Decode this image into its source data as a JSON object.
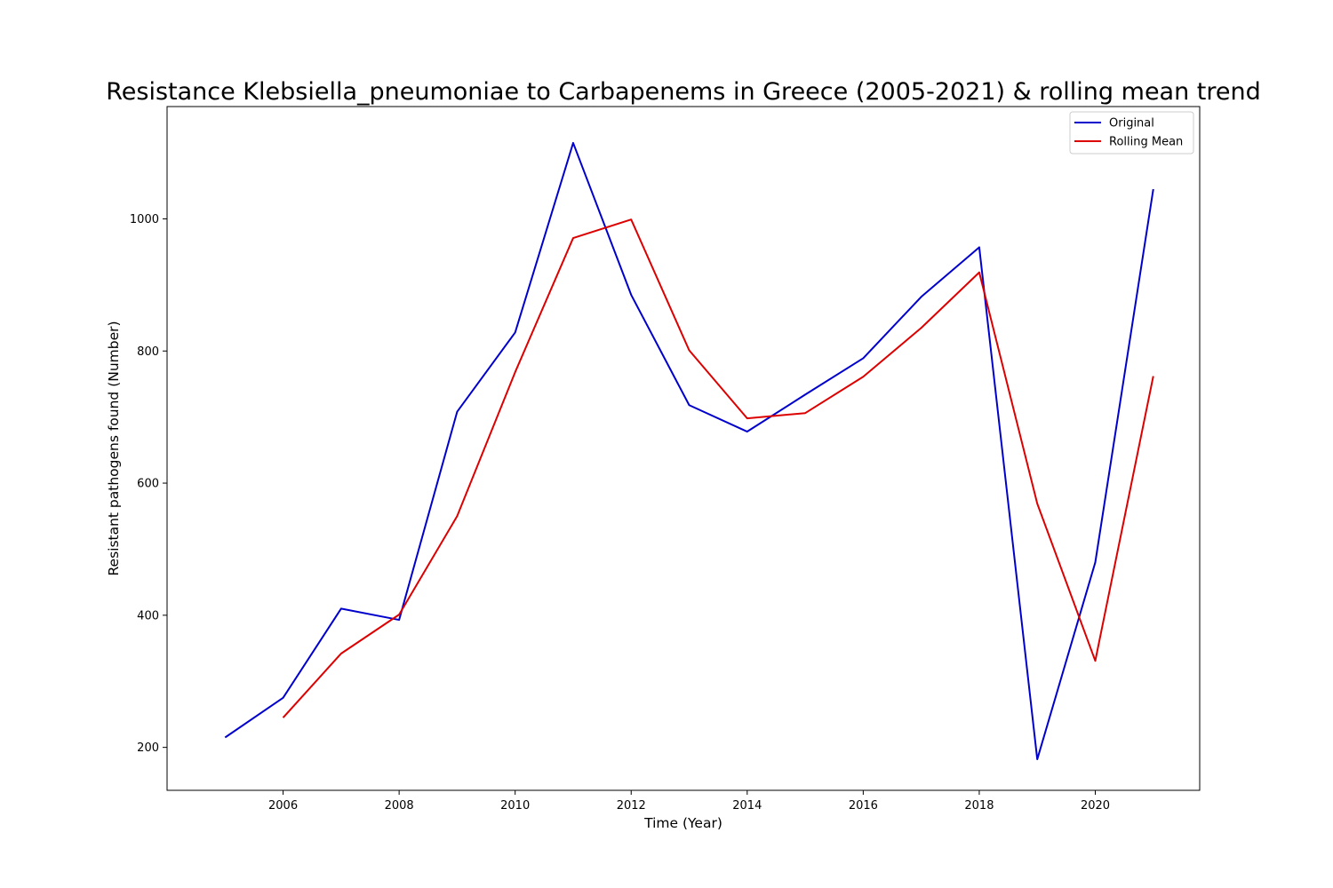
{
  "chart_data": {
    "type": "line",
    "title": "Resistance Klebsiella_pneumoniae to Carbapenems in Greece (2005-2021) & rolling mean trend",
    "xlabel": "Time (Year)",
    "ylabel": "Resistant pathogens found (Number)",
    "xlim": [
      2004,
      2021.8
    ],
    "ylim": [
      135,
      1170
    ],
    "xticks": [
      2006,
      2008,
      2010,
      2012,
      2014,
      2016,
      2018,
      2020
    ],
    "yticks": [
      200,
      400,
      600,
      800,
      1000
    ],
    "grid": false,
    "legend_position": "top-right",
    "series": [
      {
        "name": "Original",
        "color": "#0000cc",
        "points": [
          [
            2005,
            215
          ],
          [
            2006,
            275
          ],
          [
            2007,
            410
          ],
          [
            2008,
            393
          ],
          [
            2009,
            708
          ],
          [
            2010,
            828
          ],
          [
            2011,
            1115
          ],
          [
            2012,
            885
          ],
          [
            2013,
            718
          ],
          [
            2014,
            678
          ],
          [
            2015,
            734
          ],
          [
            2016,
            789
          ],
          [
            2017,
            882
          ],
          [
            2018,
            957
          ],
          [
            2019,
            182
          ],
          [
            2020,
            480
          ],
          [
            2021,
            1045
          ]
        ]
      },
      {
        "name": "Rolling Mean",
        "color": "#dd0000",
        "points": [
          [
            2006,
            245
          ],
          [
            2007,
            342
          ],
          [
            2008,
            401
          ],
          [
            2009,
            550
          ],
          [
            2010,
            768
          ],
          [
            2011,
            971
          ],
          [
            2012,
            999
          ],
          [
            2013,
            801
          ],
          [
            2014,
            698
          ],
          [
            2015,
            706
          ],
          [
            2016,
            761
          ],
          [
            2017,
            835
          ],
          [
            2018,
            919
          ],
          [
            2019,
            569
          ],
          [
            2020,
            331
          ],
          [
            2021,
            762
          ]
        ]
      }
    ]
  }
}
